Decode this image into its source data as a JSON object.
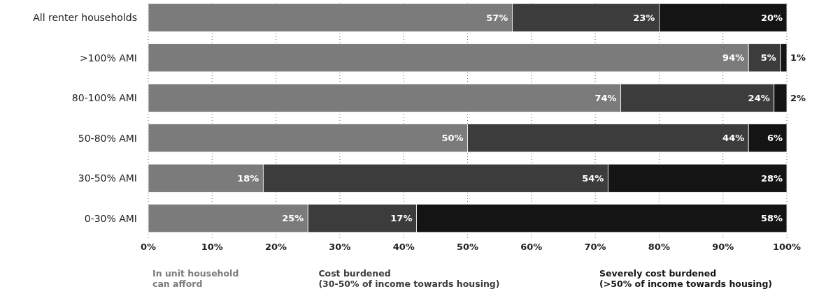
{
  "chart_data": {
    "type": "bar",
    "orientation": "horizontal",
    "stacked": true,
    "categories": [
      "All renter households",
      ">100% AMI",
      "80-100% AMI",
      "50-80% AMI",
      "30-50% AMI",
      "0-30% AMI"
    ],
    "series": [
      {
        "name": "In unit household\ncan afford",
        "color": "#7b7b7b",
        "values": [
          57,
          94,
          74,
          50,
          18,
          25
        ],
        "value_labels": [
          "57%",
          "94%",
          "74%",
          "50%",
          "18%",
          "25%"
        ]
      },
      {
        "name": "Cost burdened\n(30-50% of income towards housing)",
        "color": "#3c3c3c",
        "values": [
          23,
          5,
          24,
          44,
          54,
          17
        ],
        "value_labels": [
          "23%",
          "5%",
          "24%",
          "44%",
          "54%",
          "17%"
        ]
      },
      {
        "name": "Severely cost burdened\n(>50% of income towards housing)",
        "color": "#141414",
        "values": [
          20,
          1,
          2,
          6,
          28,
          58
        ],
        "value_labels": [
          "20%",
          "1%",
          "2%",
          "6%",
          "28%",
          "58%"
        ]
      }
    ],
    "xlim": [
      0,
      100
    ],
    "xticks": [
      {
        "value": 0,
        "label": "0%"
      },
      {
        "value": 10,
        "label": "10%"
      },
      {
        "value": 20,
        "label": "20%"
      },
      {
        "value": 30,
        "label": "30%"
      },
      {
        "value": 40,
        "label": "40%"
      },
      {
        "value": 50,
        "label": "50%"
      },
      {
        "value": 60,
        "label": "60%"
      },
      {
        "value": 70,
        "label": "70%"
      },
      {
        "value": 80,
        "label": "80%"
      },
      {
        "value": 90,
        "label": "90%"
      },
      {
        "value": 100,
        "label": "100%"
      }
    ],
    "grid": "x",
    "legend": "bottom"
  }
}
